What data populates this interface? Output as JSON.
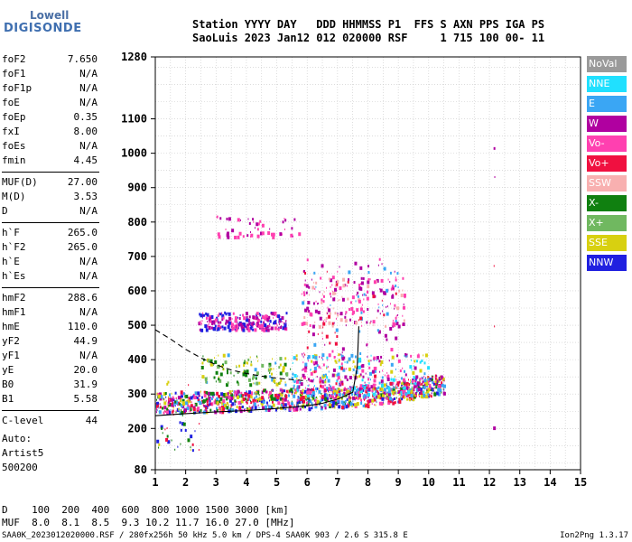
{
  "logo": {
    "top": "Lowell",
    "bottom": "DIGISONDE"
  },
  "header": {
    "line1": "Station YYYY DAY   DDD HHMMSS P1  FFS S AXN PPS IGA PS",
    "line2": "SaoLuis 2023 Jan12 012 020000 RSF     1 715 100 00- 11"
  },
  "params": [
    {
      "label": "foF2",
      "value": "7.650"
    },
    {
      "label": "foF1",
      "value": "N/A"
    },
    {
      "label": "foF1p",
      "value": "N/A"
    },
    {
      "label": "foE",
      "value": "N/A"
    },
    {
      "label": "foEp",
      "value": "0.35"
    },
    {
      "label": "fxI",
      "value": "8.00"
    },
    {
      "label": "foEs",
      "value": "N/A"
    },
    {
      "label": "fmin",
      "value": "4.45"
    },
    {
      "label": "MUF(D)",
      "value": "27.00"
    },
    {
      "label": "M(D)",
      "value": "3.53"
    },
    {
      "label": "D",
      "value": "N/A"
    },
    {
      "label": "h`F",
      "value": "265.0"
    },
    {
      "label": "h`F2",
      "value": "265.0"
    },
    {
      "label": "h`E",
      "value": "N/A"
    },
    {
      "label": "h`Es",
      "value": "N/A"
    },
    {
      "label": "hmF2",
      "value": "288.6"
    },
    {
      "label": "hmF1",
      "value": "N/A"
    },
    {
      "label": "hmE",
      "value": "110.0"
    },
    {
      "label": "yF2",
      "value": "44.9"
    },
    {
      "label": "yF1",
      "value": "N/A"
    },
    {
      "label": "yE",
      "value": "20.0"
    },
    {
      "label": "B0",
      "value": "31.9"
    },
    {
      "label": "B1",
      "value": "5.58"
    },
    {
      "label": "C-level",
      "value": "44"
    }
  ],
  "notes": [
    "Auto:",
    "Artist5",
    "500200"
  ],
  "legend": [
    {
      "label": "NoVal",
      "color": "#9a9a9a"
    },
    {
      "label": "NNE",
      "color": "#20e0ff"
    },
    {
      "label": "E",
      "color": "#3aa6f4"
    },
    {
      "label": "W",
      "color": "#b000a0"
    },
    {
      "label": "Vo-",
      "color": "#ff40b0"
    },
    {
      "label": "Vo+",
      "color": "#f01040"
    },
    {
      "label": "SSW",
      "color": "#f8b0b0"
    },
    {
      "label": "X-",
      "color": "#108010"
    },
    {
      "label": "X+",
      "color": "#70b860"
    },
    {
      "label": "SSE",
      "color": "#d8d010"
    },
    {
      "label": "NNW",
      "color": "#2020e0"
    }
  ],
  "muf_table": {
    "row1": "D    100  200  400  600  800 1000 1500 3000 [km]",
    "row2": "MUF  8.0  8.1  8.5  9.3 10.2 11.7 16.0 27.0 [MHz]"
  },
  "footer": {
    "left": "SAA0K_2023012020000.RSF / 280fx256h 50 kHz 5.0 km / DPS-4 SAA0K 903 / 2.6 S 315.8 E",
    "right": "Ion2Png 1.3.17"
  },
  "chart_data": {
    "type": "scatter",
    "title": "",
    "xlabel": "",
    "ylabel": "",
    "xlim": [
      1,
      15
    ],
    "xticks": [
      1,
      2,
      3,
      4,
      5,
      6,
      7,
      8,
      9,
      10,
      11,
      12,
      13,
      14,
      15
    ],
    "ylim": [
      80,
      1280
    ],
    "yticks": [
      80,
      200,
      300,
      400,
      500,
      600,
      700,
      800,
      900,
      1000,
      1100,
      1280
    ],
    "grid": true,
    "legend_position": "right",
    "clusters": [
      {
        "name": "F-trace",
        "x_range": [
          1.0,
          10.5
        ],
        "y_range": [
          240,
          360
        ],
        "density": 1100,
        "colors": [
          "#f01040",
          "#ff40b0",
          "#b000a0",
          "#2020e0",
          "#3aa6f4",
          "#d8d010",
          "#108010"
        ]
      },
      {
        "name": "F-trace-upper",
        "x_range": [
          5.5,
          10.0
        ],
        "y_range": [
          300,
          420
        ],
        "density": 350,
        "colors": [
          "#3aa6f4",
          "#20e0ff",
          "#ff40b0",
          "#b000a0",
          "#d8d010"
        ]
      },
      {
        "name": "second-hop",
        "x_range": [
          2.4,
          5.3
        ],
        "y_range": [
          490,
          540
        ],
        "density": 260,
        "colors": [
          "#b000a0",
          "#ff40b0",
          "#2020e0"
        ]
      },
      {
        "name": "second-hop-b",
        "x_range": [
          5.8,
          9.2
        ],
        "y_range": [
          500,
          640
        ],
        "density": 180,
        "colors": [
          "#b000a0",
          "#ff40b0",
          "#f8b0b0"
        ]
      },
      {
        "name": "third-hop",
        "x_range": [
          3.0,
          5.8
        ],
        "y_range": [
          760,
          820
        ],
        "density": 50,
        "colors": [
          "#b000a0",
          "#ff40b0"
        ]
      },
      {
        "name": "sparse-verticals",
        "x_range": [
          5.8,
          9.0
        ],
        "y_range": [
          320,
          700
        ],
        "density": 160,
        "colors": [
          "#b000a0",
          "#ff40b0",
          "#3aa6f4",
          "#f01040"
        ]
      },
      {
        "name": "diffuse",
        "x_range": [
          2.5,
          5.5
        ],
        "y_range": [
          330,
          420
        ],
        "density": 120,
        "colors": [
          "#108010",
          "#d8d010",
          "#3aa6f4",
          "#70b860"
        ]
      },
      {
        "name": "low-scatter",
        "x_range": [
          1.0,
          2.6
        ],
        "y_range": [
          140,
          340
        ],
        "density": 45,
        "colors": [
          "#2020e0",
          "#f01040",
          "#d8d010",
          "#108010"
        ]
      },
      {
        "name": "isolated",
        "x_range": [
          12.1,
          12.2
        ],
        "y_range": [
          190,
          1060
        ],
        "density": 5,
        "colors": [
          "#b000a0",
          "#f01040"
        ]
      }
    ],
    "curves": [
      {
        "name": "profile-solid",
        "points": [
          [
            1.0,
            237
          ],
          [
            2.0,
            243
          ],
          [
            3.0,
            248
          ],
          [
            4.0,
            252
          ],
          [
            5.0,
            258
          ],
          [
            6.0,
            266
          ],
          [
            6.5,
            273
          ],
          [
            7.0,
            285
          ],
          [
            7.5,
            305
          ],
          [
            7.65,
            380
          ],
          [
            7.7,
            497
          ]
        ]
      },
      {
        "name": "profile-dashed",
        "dashed": true,
        "points": [
          [
            1.0,
            487
          ],
          [
            1.5,
            460
          ],
          [
            2.0,
            430
          ],
          [
            2.5,
            405
          ],
          [
            3.0,
            385
          ],
          [
            3.5,
            370
          ],
          [
            4.0,
            360
          ],
          [
            4.5,
            352
          ],
          [
            5.0,
            346
          ],
          [
            5.5,
            342
          ],
          [
            6.0,
            338
          ]
        ]
      }
    ]
  }
}
